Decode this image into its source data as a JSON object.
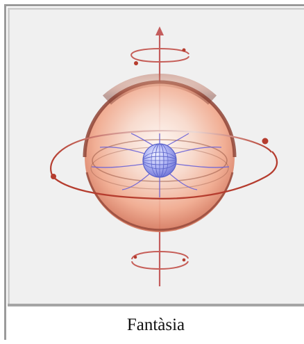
{
  "caption": {
    "text": "Fantàsia"
  },
  "diagram": {
    "objects": [
      "outer-sphere",
      "inner-sphere",
      "rotation-axis",
      "equatorial-orbit",
      "top-rotation-ring",
      "bottom-rotation-ring",
      "field-lines"
    ],
    "colors": {
      "background": "#f0f0f0",
      "sphere_rim": "#7f3d31",
      "sphere_fill": "#f3a180",
      "orbit": "#b53c2e",
      "axis": "#c95c5c",
      "inner_sphere": "#8a90e0",
      "field_lines": "#6d64d8"
    }
  }
}
